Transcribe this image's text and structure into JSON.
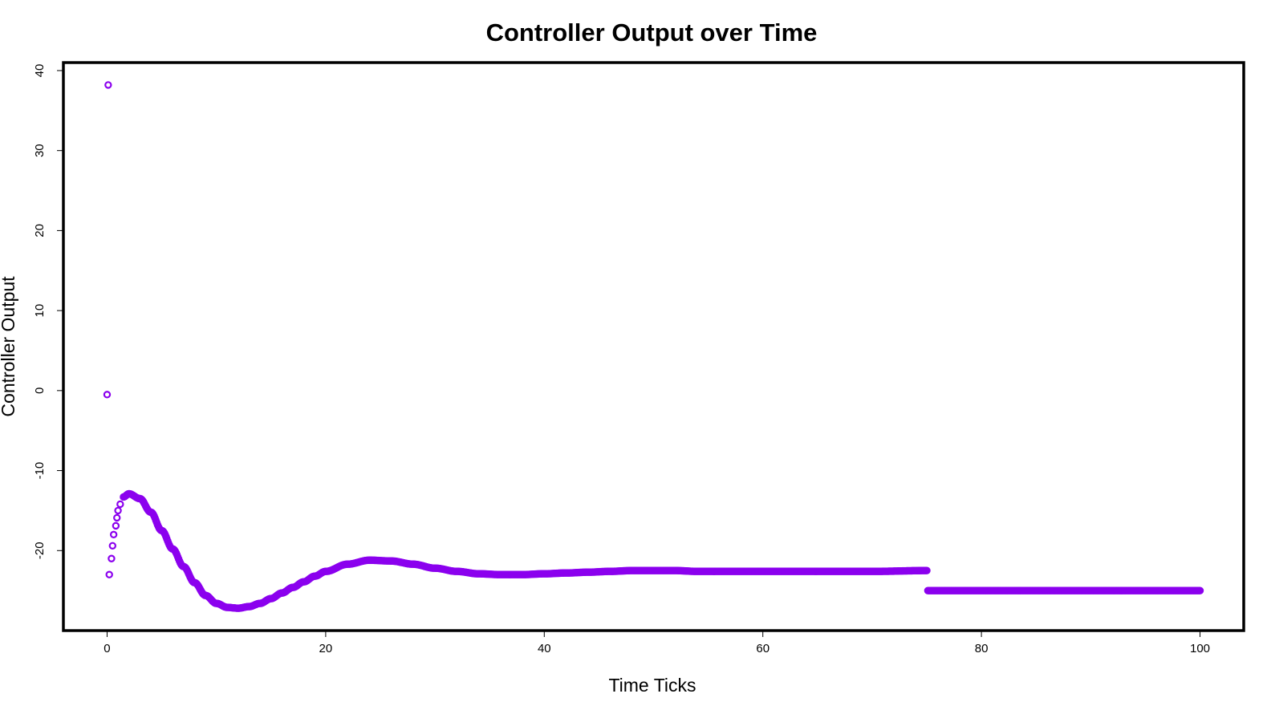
{
  "chart_data": {
    "type": "scatter",
    "title": "Controller Output over Time",
    "xlabel": "Time Ticks",
    "ylabel": "Controller Output",
    "xlim": [
      -4,
      104
    ],
    "ylim": [
      -30,
      41
    ],
    "x_ticks": [
      0,
      20,
      40,
      60,
      80,
      100
    ],
    "x_tick_labels": [
      "0",
      "20",
      "40",
      "60",
      "80",
      "100"
    ],
    "y_ticks": [
      -20,
      -10,
      0,
      10,
      20,
      30,
      40
    ],
    "y_tick_labels": [
      "-20",
      "-10",
      "0",
      "10",
      "20",
      "30",
      "40"
    ],
    "grid": false,
    "legend": false,
    "marker": "open-circle",
    "color": "#8B00EE",
    "series": [
      {
        "points_sample": [
          [
            0.0,
            -0.5
          ],
          [
            0.1,
            38.2
          ],
          [
            0.2,
            -23.0
          ],
          [
            0.4,
            -21.0
          ],
          [
            0.5,
            -19.4
          ],
          [
            0.6,
            -18.0
          ],
          [
            0.8,
            -16.9
          ],
          [
            0.9,
            -15.9
          ],
          [
            1.0,
            -15.0
          ],
          [
            1.2,
            -14.2
          ],
          [
            1.5,
            -13.3
          ],
          [
            2.0,
            -12.9
          ],
          [
            3.0,
            -13.5
          ],
          [
            4.0,
            -15.2
          ],
          [
            5.0,
            -17.5
          ],
          [
            6.0,
            -19.8
          ],
          [
            7.0,
            -22.0
          ],
          [
            8.0,
            -24.0
          ],
          [
            9.0,
            -25.6
          ],
          [
            10.0,
            -26.6
          ],
          [
            11.0,
            -27.1
          ],
          [
            12.0,
            -27.2
          ],
          [
            13.0,
            -27.0
          ],
          [
            14.0,
            -26.6
          ],
          [
            15.0,
            -26.0
          ],
          [
            16.0,
            -25.3
          ],
          [
            17.0,
            -24.6
          ],
          [
            18.0,
            -23.9
          ],
          [
            19.0,
            -23.2
          ],
          [
            20.0,
            -22.6
          ],
          [
            22.0,
            -21.7
          ],
          [
            24.0,
            -21.2
          ],
          [
            26.0,
            -21.3
          ],
          [
            28.0,
            -21.7
          ],
          [
            30.0,
            -22.2
          ],
          [
            32.0,
            -22.6
          ],
          [
            34.0,
            -22.9
          ],
          [
            36.0,
            -23.0
          ],
          [
            38.0,
            -23.0
          ],
          [
            40.0,
            -22.9
          ],
          [
            42.0,
            -22.8
          ],
          [
            44.0,
            -22.7
          ],
          [
            46.0,
            -22.6
          ],
          [
            48.0,
            -22.5
          ],
          [
            50.0,
            -22.5
          ],
          [
            52.0,
            -22.5
          ],
          [
            54.0,
            -22.6
          ],
          [
            56.0,
            -22.6
          ],
          [
            58.0,
            -22.6
          ],
          [
            60.0,
            -22.6
          ],
          [
            65.0,
            -22.6
          ],
          [
            70.0,
            -22.6
          ],
          [
            75.0,
            -22.5
          ],
          [
            75.1,
            -25.0
          ],
          [
            80.0,
            -25.0
          ],
          [
            85.0,
            -25.0
          ],
          [
            90.0,
            -25.0
          ],
          [
            95.0,
            -25.0
          ],
          [
            100.0,
            -25.0
          ]
        ]
      }
    ]
  }
}
